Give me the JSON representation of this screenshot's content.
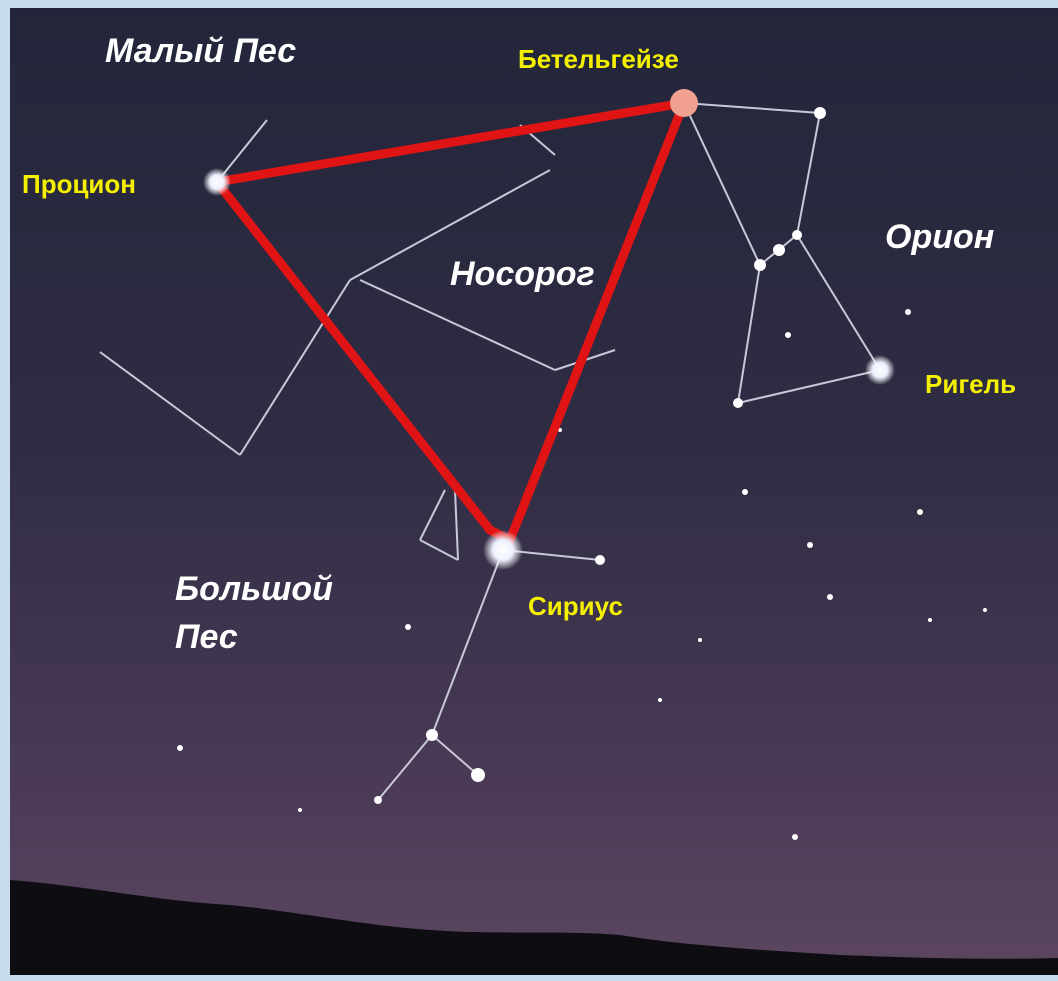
{
  "constellations": [
    {
      "lines": [
        "Малый Пес"
      ]
    },
    {
      "lines": [
        "Орион"
      ]
    },
    {
      "lines": [
        "Носорог"
      ]
    },
    {
      "lines": [
        "Большой",
        "Пес"
      ]
    }
  ],
  "stars": [
    {
      "label": "Бетельгейзе"
    },
    {
      "label": "Процион"
    },
    {
      "label": "Ригель"
    },
    {
      "label": "Сириус"
    }
  ]
}
